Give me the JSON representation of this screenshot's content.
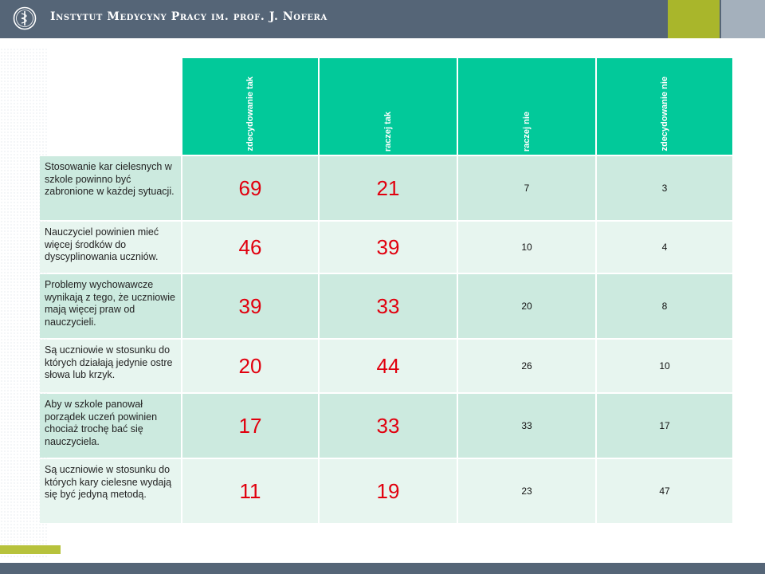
{
  "header": {
    "institute_name": "Instytut Medycyny Pracy im. prof. J. Nofera",
    "logo_icon": "medical-caduceus-icon"
  },
  "table": {
    "columns": [
      "zdecydowanie tak",
      "raczej tak",
      "raczej nie",
      "zdecydowanie nie"
    ],
    "rows": [
      {
        "statement": "Stosowanie kar cielesnych w szkole powinno być zabronione w każdej sytuacji.",
        "values": [
          "69",
          "21",
          "7",
          "3"
        ]
      },
      {
        "statement": "Nauczyciel powinien mieć więcej środków do dyscyplinowania uczniów.",
        "values": [
          "46",
          "39",
          "10",
          "4"
        ]
      },
      {
        "statement": "Problemy wychowawcze wynikają z tego, że uczniowie mają więcej praw od nauczycieli.",
        "values": [
          "39",
          "33",
          "20",
          "8"
        ]
      },
      {
        "statement": "Są uczniowie w stosunku do których działają jedynie ostre słowa lub krzyk.",
        "values": [
          "20",
          "44",
          "26",
          "10"
        ]
      },
      {
        "statement": "Aby w szkole panował porządek uczeń powinien chociaż trochę bać się nauczyciela.",
        "values": [
          "17",
          "33",
          "33",
          "17"
        ]
      },
      {
        "statement": "Są uczniowie w stosunku do których kary cielesne wydają się być jedyną metodą.",
        "values": [
          "11",
          "19",
          "23",
          "47"
        ]
      }
    ]
  },
  "colors": {
    "header_band": "#556577",
    "header_accent_green": "#a9b62b",
    "header_accent_gray": "#a4b0bc",
    "column_header": "#02c99a",
    "row_dark": "#cceadf",
    "row_light": "#e7f5ef",
    "highlight_value": "#e1000e"
  }
}
